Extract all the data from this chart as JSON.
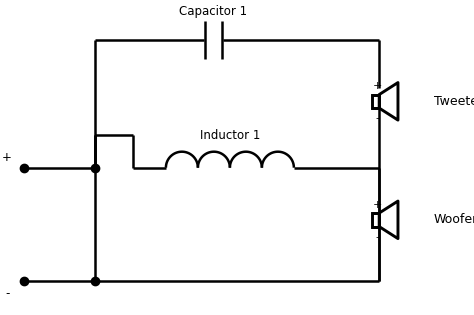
{
  "background_color": "#ffffff",
  "line_color": "#000000",
  "line_width": 1.8,
  "text_color": "#000000",
  "capacitor_label": "Capacitor 1",
  "inductor_label": "Inductor 1",
  "tweeter_label": "Tweeter",
  "woofer_label": "Woofer",
  "plus_label": "+",
  "minus_label": "-",
  "figsize": [
    4.74,
    3.15
  ],
  "dpi": 100,
  "xlim": [
    0,
    10
  ],
  "ylim": [
    0,
    6.63
  ]
}
